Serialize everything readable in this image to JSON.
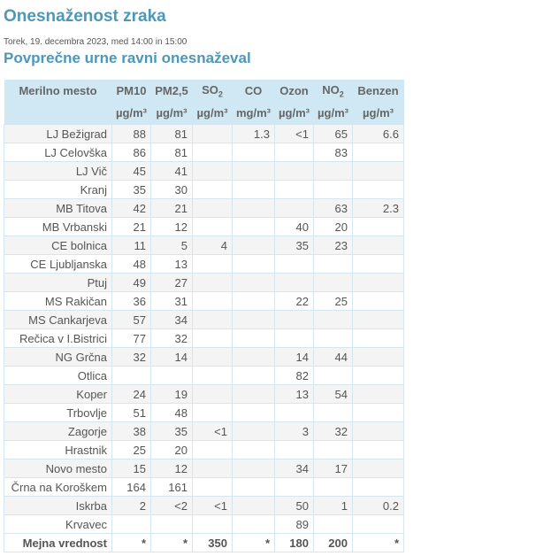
{
  "page": {
    "title": "Onesnaženost zraka",
    "date": "Torek, 19. decembra 2023, med 14:00 in 15:00",
    "subtitle": "Povprečne urne ravni onesnaževal"
  },
  "colors": {
    "heading": "#4d98b8",
    "header_bg": "#cfe8f3"
  },
  "table": {
    "station_header": "Merilno mesto",
    "columns": [
      {
        "name": "PM10",
        "unit": "µg/m³"
      },
      {
        "name": "PM2,5",
        "unit": "µg/m³"
      },
      {
        "name": "SO",
        "sub": "2",
        "unit": "µg/m³"
      },
      {
        "name": "CO",
        "unit": "mg/m³"
      },
      {
        "name": "Ozon",
        "unit": "µg/m³"
      },
      {
        "name": "NO",
        "sub": "2",
        "unit": "µg/m³"
      },
      {
        "name": "Benzen",
        "unit": "µg/m³"
      }
    ],
    "rows": [
      [
        "LJ Bežigrad",
        "88",
        "81",
        "",
        "1.3",
        "<1",
        "65",
        "6.6"
      ],
      [
        "LJ Celovška",
        "86",
        "81",
        "",
        "",
        "",
        "83",
        ""
      ],
      [
        "LJ Vič",
        "45",
        "41",
        "",
        "",
        "",
        "",
        ""
      ],
      [
        "Kranj",
        "35",
        "30",
        "",
        "",
        "",
        "",
        ""
      ],
      [
        "MB Titova",
        "42",
        "21",
        "",
        "",
        "",
        "63",
        "2.3"
      ],
      [
        "MB Vrbanski",
        "21",
        "12",
        "",
        "",
        "40",
        "20",
        ""
      ],
      [
        "CE bolnica",
        "11",
        "5",
        "4",
        "",
        "35",
        "23",
        ""
      ],
      [
        "CE Ljubljanska",
        "48",
        "13",
        "",
        "",
        "",
        "",
        ""
      ],
      [
        "Ptuj",
        "49",
        "27",
        "",
        "",
        "",
        "",
        ""
      ],
      [
        "MS Rakičan",
        "36",
        "31",
        "",
        "",
        "22",
        "25",
        ""
      ],
      [
        "MS Cankarjeva",
        "57",
        "34",
        "",
        "",
        "",
        "",
        ""
      ],
      [
        "Rečica v I.Bistrici",
        "77",
        "32",
        "",
        "",
        "",
        "",
        ""
      ],
      [
        "NG Grčna",
        "32",
        "14",
        "",
        "",
        "14",
        "44",
        ""
      ],
      [
        "Otlica",
        "",
        "",
        "",
        "",
        "82",
        "",
        ""
      ],
      [
        "Koper",
        "24",
        "19",
        "",
        "",
        "13",
        "54",
        ""
      ],
      [
        "Trbovlje",
        "51",
        "48",
        "",
        "",
        "",
        "",
        ""
      ],
      [
        "Zagorje",
        "38",
        "35",
        "<1",
        "",
        "3",
        "32",
        ""
      ],
      [
        "Hrastnik",
        "25",
        "20",
        "",
        "",
        "",
        "",
        ""
      ],
      [
        "Novo mesto",
        "15",
        "12",
        "",
        "",
        "34",
        "17",
        ""
      ],
      [
        "Črna na Koroškem",
        "164",
        "161",
        "",
        "",
        "",
        "",
        ""
      ],
      [
        "Iskrba",
        "2",
        "<2",
        "<1",
        "",
        "50",
        "1",
        "0.2"
      ],
      [
        "Krvavec",
        "",
        "",
        "",
        "",
        "89",
        "",
        ""
      ]
    ],
    "limit_row": [
      "Mejna vrednost",
      "*",
      "*",
      "350",
      "*",
      "180",
      "200",
      "*"
    ]
  }
}
